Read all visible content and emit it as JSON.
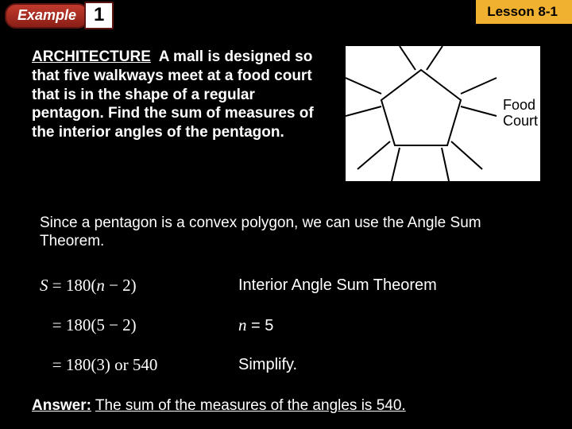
{
  "badge": {
    "example": "Example",
    "num": "1",
    "lesson": "Lesson 8-1"
  },
  "problem": {
    "keyword": "ARCHITECTURE",
    "text": "A mall is designed so that five walkways meet at a food court that is in the shape of a regular pentagon. Find the sum of measures of the interior angles of the pentagon."
  },
  "diagram": {
    "label1": "Food",
    "label2": "Court",
    "stroke": "#000000",
    "bg": "#ffffff"
  },
  "explain": "Since a pentagon is a convex polygon, we can use the Angle Sum Theorem.",
  "rows": [
    {
      "left_html": "<span class='var'>S</span> = 180(<span class='var'>n</span> − 2)",
      "right_html": "Interior Angle Sum Theorem"
    },
    {
      "left_html": "&nbsp;&nbsp;&nbsp;= 180(5 − 2)",
      "right_html": "<span class='var'>n</span> = 5"
    },
    {
      "left_html": "&nbsp;&nbsp;&nbsp;= 180(3) or 540",
      "right_html": "Simplify."
    }
  ],
  "answer": {
    "label": "Answer:",
    "text": "The sum of the measures of the angles is 540."
  }
}
